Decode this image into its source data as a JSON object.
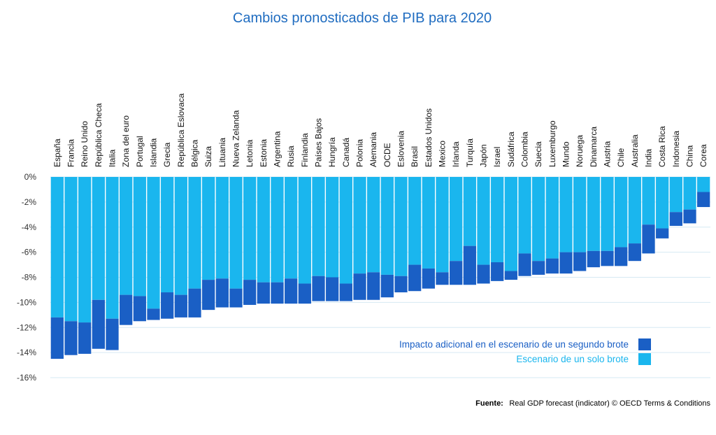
{
  "chart_data": {
    "type": "bar",
    "stacked": true,
    "title": "Cambios pronosticados de PIB para 2020",
    "categories": [
      "España",
      "Francia",
      "Reino Unido",
      "República Checa",
      "Italia",
      "Zona del euro",
      "Portugal",
      "Islandia",
      "Grecia",
      "República Eslovaca",
      "Bélgica",
      "Suiza",
      "Lituania",
      "Nueva Zelanda",
      "Letonia",
      "Estonia",
      "Argentina",
      "Rusia",
      "Finlandia",
      "Países Bajos",
      "Hungría",
      "Canadá",
      "Polonia",
      "Alemania",
      "OCDE",
      "Eslovenia",
      "Brasil",
      "Estados Unidos",
      "Mexico",
      "Irlanda",
      "Turquía",
      "Japón",
      "Israel",
      "Sudáfrica",
      "Colombia",
      "Suecia",
      "Luxemburgo",
      "Mundo",
      "Noruega",
      "Dinamarca",
      "Austria",
      "Chile",
      "Australia",
      "India",
      "Costa Rica",
      "Indonesia",
      "China",
      "Corea"
    ],
    "series": [
      {
        "name": "Escenario de un solo brote",
        "color": "#1ab6ee",
        "values": [
          -11.2,
          -11.5,
          -11.6,
          -9.8,
          -11.3,
          -9.4,
          -9.5,
          -10.5,
          -9.2,
          -9.4,
          -8.9,
          -8.2,
          -8.1,
          -8.9,
          -8.2,
          -8.4,
          -8.4,
          -8.1,
          -8.5,
          -7.9,
          -8.0,
          -8.5,
          -7.7,
          -7.6,
          -7.8,
          -7.9,
          -7.0,
          -7.3,
          -7.6,
          -6.7,
          -5.5,
          -7.0,
          -6.8,
          -7.5,
          -6.1,
          -6.7,
          -6.5,
          -6.0,
          -6.0,
          -5.9,
          -5.9,
          -5.6,
          -5.3,
          -3.8,
          -4.1,
          -2.8,
          -2.6,
          -1.2
        ]
      },
      {
        "name": "Impacto adicional en el escenario de un segundo brote",
        "color": "#1a5fc5",
        "values": [
          -3.3,
          -2.7,
          -2.5,
          -3.9,
          -2.5,
          -2.4,
          -2.0,
          -0.9,
          -2.1,
          -1.8,
          -2.3,
          -2.4,
          -2.3,
          -1.5,
          -2.0,
          -1.7,
          -1.7,
          -2.0,
          -1.6,
          -2.0,
          -1.9,
          -1.4,
          -2.1,
          -2.2,
          -1.8,
          -1.3,
          -2.1,
          -1.6,
          -1.0,
          -1.9,
          -3.1,
          -1.5,
          -1.5,
          -0.7,
          -1.8,
          -1.1,
          -1.2,
          -1.7,
          -1.5,
          -1.3,
          -1.2,
          -1.5,
          -1.4,
          -2.3,
          -0.8,
          -1.1,
          -1.1,
          -1.2
        ]
      }
    ],
    "yticks": [
      "0%",
      "-2%",
      "-4%",
      "-6%",
      "-8%",
      "-10%",
      "-12%",
      "-14%",
      "-16%"
    ],
    "ylim": [
      -16,
      0
    ],
    "grid": true,
    "legend_position": "bottom-right",
    "source_label": "Fuente:",
    "source_text": "Real GDP forecast (indicator) © OECD Terms & Conditions"
  }
}
